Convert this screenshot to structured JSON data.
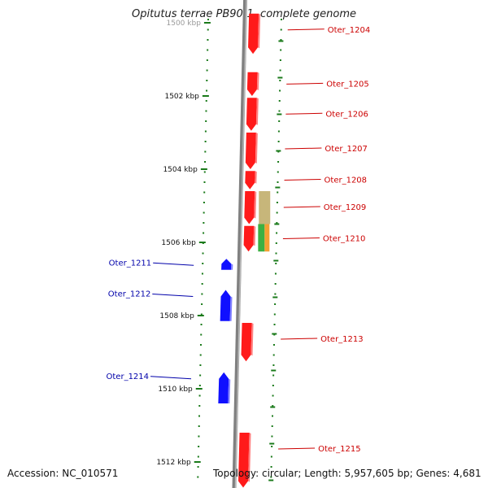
{
  "title": "Opitutus terrae PB90-1, complete genome",
  "footer": {
    "accession": "Accession: NC_010571",
    "summary": "Topology: circular; Length: 5,957,605 bp; Genes: 4,681"
  },
  "ticks": [
    {
      "label": "1500 kbp",
      "kbp": 1500
    },
    {
      "label": "1502 kbp",
      "kbp": 1502
    },
    {
      "label": "1504 kbp",
      "kbp": 1504
    },
    {
      "label": "1506 kbp",
      "kbp": 1506
    },
    {
      "label": "1508 kbp",
      "kbp": 1508
    },
    {
      "label": "1510 kbp",
      "kbp": 1510
    },
    {
      "label": "1512 kbp",
      "kbp": 1512
    }
  ],
  "genes_forward": [
    {
      "label": "Oter_1204",
      "start_kbp": 1499.75,
      "end_kbp": 1500.85
    },
    {
      "label": "Oter_1205",
      "start_kbp": 1501.35,
      "end_kbp": 1502.0
    },
    {
      "label": "Oter_1206",
      "start_kbp": 1502.05,
      "end_kbp": 1502.95
    },
    {
      "label": "Oter_1207",
      "start_kbp": 1503.0,
      "end_kbp": 1504.0
    },
    {
      "label": "Oter_1208",
      "start_kbp": 1504.05,
      "end_kbp": 1504.55
    },
    {
      "label": "Oter_1209",
      "start_kbp": 1504.6,
      "end_kbp": 1505.5
    },
    {
      "label": "Oter_1210",
      "start_kbp": 1505.55,
      "end_kbp": 1506.25
    },
    {
      "label": "Oter_1213",
      "start_kbp": 1508.2,
      "end_kbp": 1509.25
    },
    {
      "label": "Oter_1215",
      "start_kbp": 1511.2,
      "end_kbp": 1512.7
    }
  ],
  "genes_reverse": [
    {
      "label": "Oter_1211",
      "start_kbp": 1506.45,
      "end_kbp": 1506.75
    },
    {
      "label": "Oter_1212",
      "start_kbp": 1507.3,
      "end_kbp": 1508.15
    },
    {
      "label": "Oter_1214",
      "start_kbp": 1509.55,
      "end_kbp": 1510.4
    }
  ],
  "features_extra": [
    {
      "kind": "tan",
      "start_kbp": 1504.6,
      "end_kbp": 1505.5,
      "color": "#c7b67a"
    },
    {
      "kind": "green",
      "start_kbp": 1505.5,
      "end_kbp": 1506.25,
      "color": "#3cb043"
    },
    {
      "kind": "orange",
      "start_kbp": 1505.5,
      "end_kbp": 1506.25,
      "color": "#f3a032"
    }
  ],
  "colors": {
    "forward": "#ff1a1a",
    "reverse": "#1010ff",
    "backbone": "#808080",
    "tick": "#1a7a1a",
    "forward_label": "#cc0000",
    "reverse_label": "#0000aa"
  }
}
